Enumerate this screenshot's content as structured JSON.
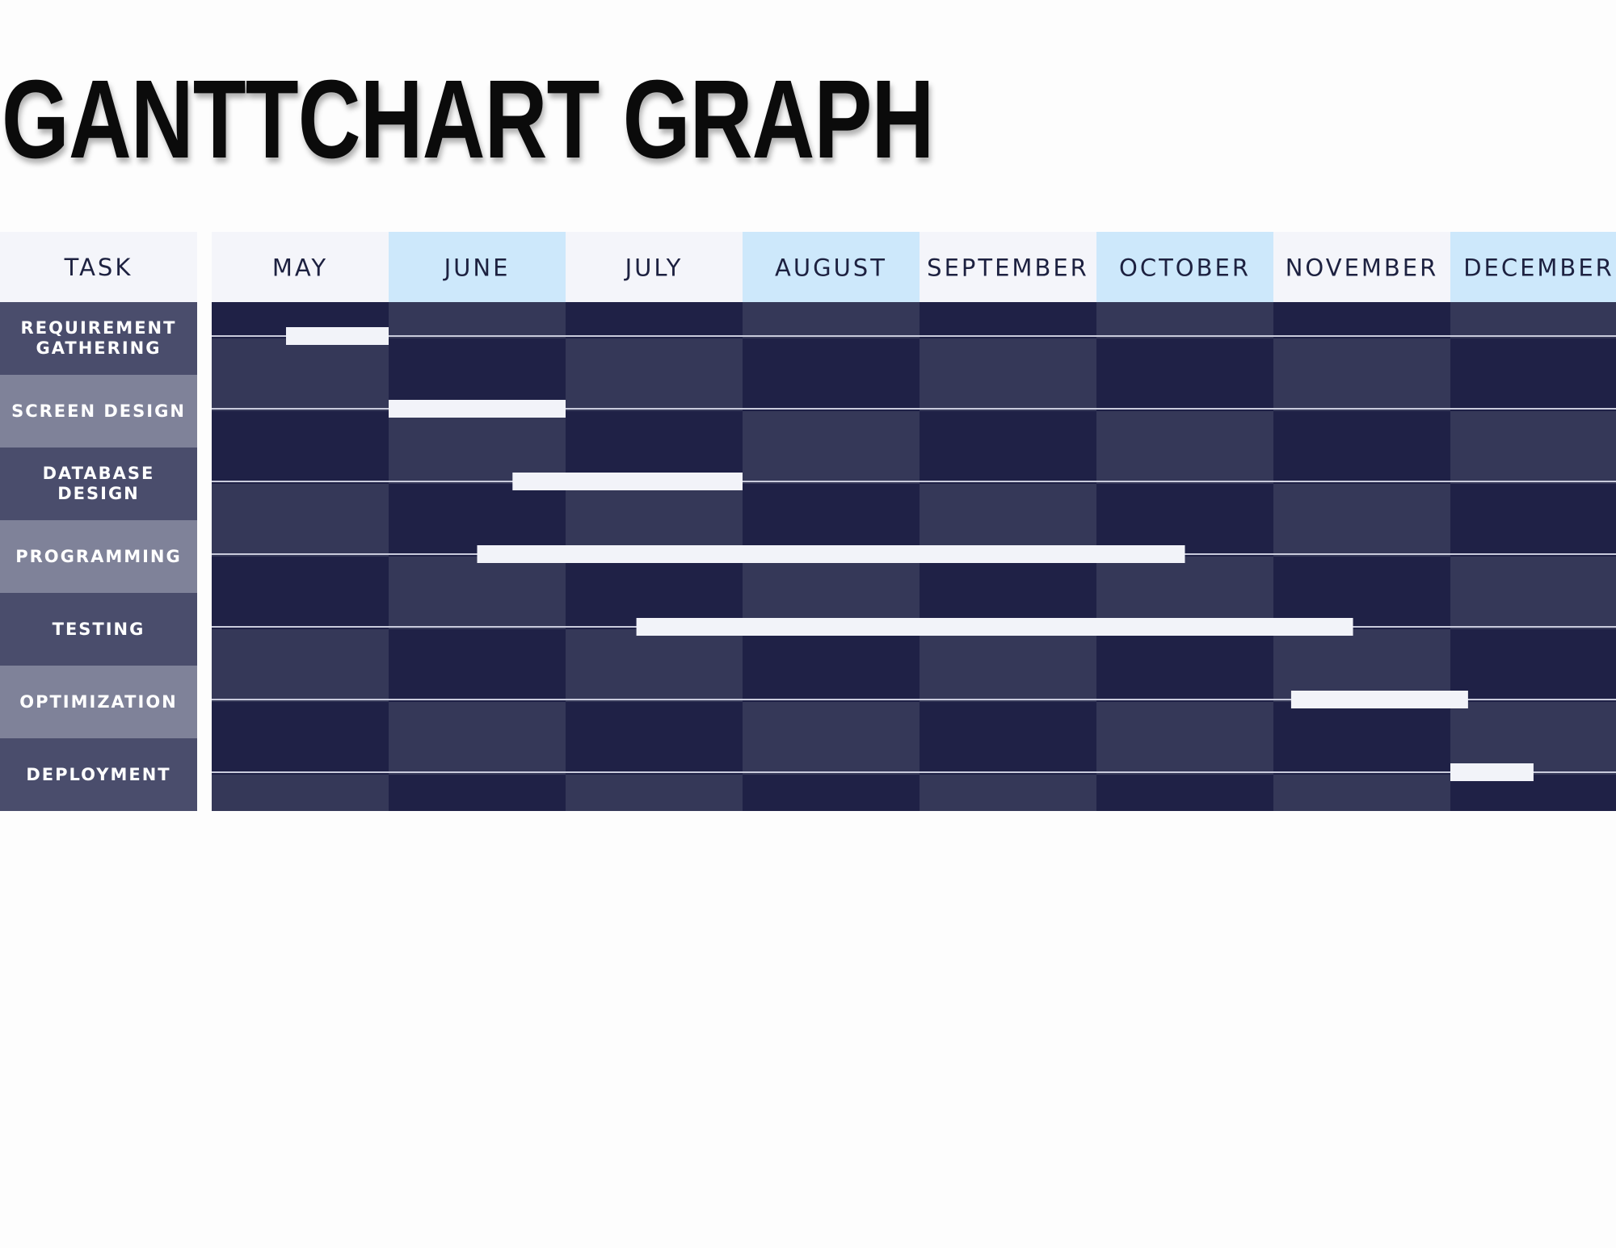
{
  "title": "GANTTCHART GRAPH",
  "colors": {
    "header_light": "#f4f5fa",
    "header_blue": "#cde8fb",
    "cell_dark": "#1f2146",
    "cell_mid": "#353858",
    "task_dark": "#4a4d6c",
    "task_light": "#7f8299",
    "bar": "#f2f3f9",
    "line": "#c9cbdc"
  },
  "task_header": "TASK",
  "chart_data": {
    "type": "gantt",
    "months": [
      "MAY",
      "JUNE",
      "JULY",
      "AUGUST",
      "SEPTEMBER",
      "OCTOBER",
      "NOVEMBER",
      "DECEMBER"
    ],
    "tasks": [
      {
        "label": "REQUIREMENT GATHERING",
        "start": 0.42,
        "end": 1.0
      },
      {
        "label": "SCREEN DESIGN",
        "start": 1.0,
        "end": 2.0
      },
      {
        "label": "DATABASE DESIGN",
        "start": 1.7,
        "end": 3.0
      },
      {
        "label": "PROGRAMMING",
        "start": 1.5,
        "end": 5.5
      },
      {
        "label": "TESTING",
        "start": 2.4,
        "end": 6.45
      },
      {
        "label": "OPTIMIZATION",
        "start": 6.1,
        "end": 7.1
      },
      {
        "label": "DEPLOYMENT",
        "start": 7.0,
        "end": 7.47
      }
    ]
  }
}
